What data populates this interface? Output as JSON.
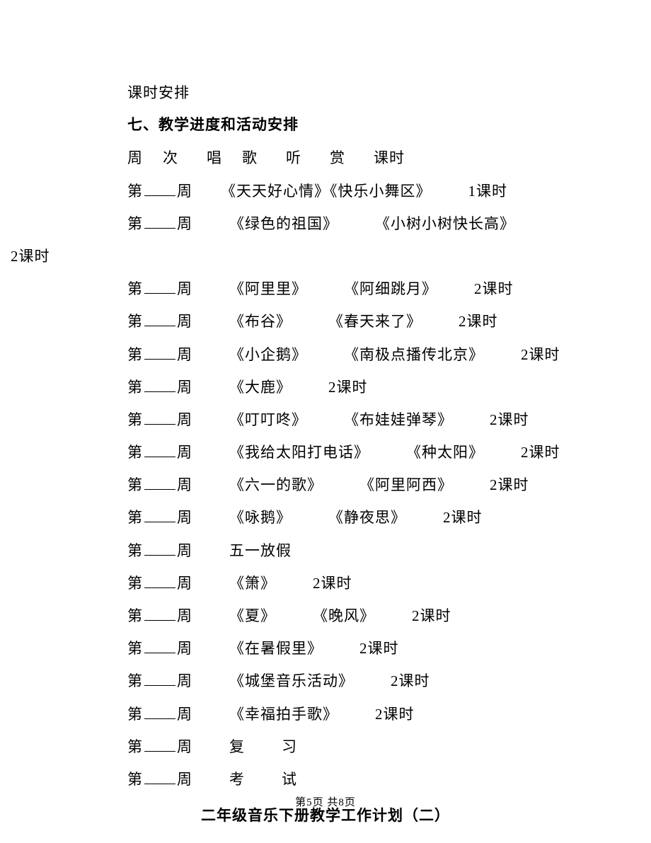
{
  "pretitle": "课时安排",
  "heading": "七、教学进度和活动安排",
  "header_row": {
    "c1": "周",
    "c2": "次",
    "c3": "唱",
    "c4": "歌",
    "c5": "听",
    "c6": "赏",
    "c7": "课时"
  },
  "rows": [
    {
      "prefix": "第",
      "suffix": "周",
      "sing": "《天天好心情》",
      "listen": "《快乐小舞区》",
      "hours": "1课时"
    },
    {
      "prefix": "第",
      "suffix": "周",
      "sing": "《绿色的祖国》",
      "listen": "《小树小树快长高》",
      "wrap_hours": "2课时"
    },
    {
      "prefix": "第",
      "suffix": "周",
      "sing": "《阿里里》",
      "listen": "《阿细跳月》",
      "hours": "2课时"
    },
    {
      "prefix": "第",
      "suffix": "周",
      "sing": "《布谷》",
      "listen": "《春天来了》",
      "hours": "2课时"
    },
    {
      "prefix": "第",
      "suffix": "周",
      "sing": "《小企鹅》",
      "listen": "《南极点播传北京》",
      "hours": "2课时"
    },
    {
      "prefix": "第",
      "suffix": "周",
      "sing": "《大鹿》",
      "hours": "2课时"
    },
    {
      "prefix": "第",
      "suffix": "周",
      "sing": "《叮叮咚》",
      "listen": "《布娃娃弹琴》",
      "hours": "2课时"
    },
    {
      "prefix": "第",
      "suffix": "周",
      "sing": "《我给太阳打电话》",
      "listen": "《种太阳》",
      "hours": "2课时"
    },
    {
      "prefix": "第",
      "suffix": "周",
      "sing": "《六一的歌》",
      "listen": "《阿里阿西》",
      "hours": "2课时"
    },
    {
      "prefix": "第",
      "suffix": "周",
      "sing": "《咏鹅》",
      "listen": "《静夜思》",
      "hours": "2课时"
    },
    {
      "prefix": "第",
      "suffix": "周",
      "sing": "五一放假"
    },
    {
      "prefix": "第",
      "suffix": "周",
      "sing": "《箫》",
      "hours": "2课时"
    },
    {
      "prefix": "第",
      "suffix": "周",
      "sing": "《夏》",
      "listen": "《晚风》",
      "hours": "2课时"
    },
    {
      "prefix": "第",
      "suffix": "周",
      "sing": "《在暑假里》",
      "hours": "2课时"
    },
    {
      "prefix": "第",
      "suffix": "周",
      "sing": "《城堡音乐活动》",
      "hours": "2课时"
    },
    {
      "prefix": "第",
      "suffix": "周",
      "sing": "《幸福拍手歌》",
      "hours": "2课时"
    },
    {
      "prefix": "第",
      "suffix": "周",
      "c1": "复",
      "c2": "习"
    },
    {
      "prefix": "第",
      "suffix": "周",
      "c1": "考",
      "c2": "试"
    }
  ],
  "subtitle": "二年级音乐下册教学工作计划（二）",
  "footer": "第5页 共8页"
}
